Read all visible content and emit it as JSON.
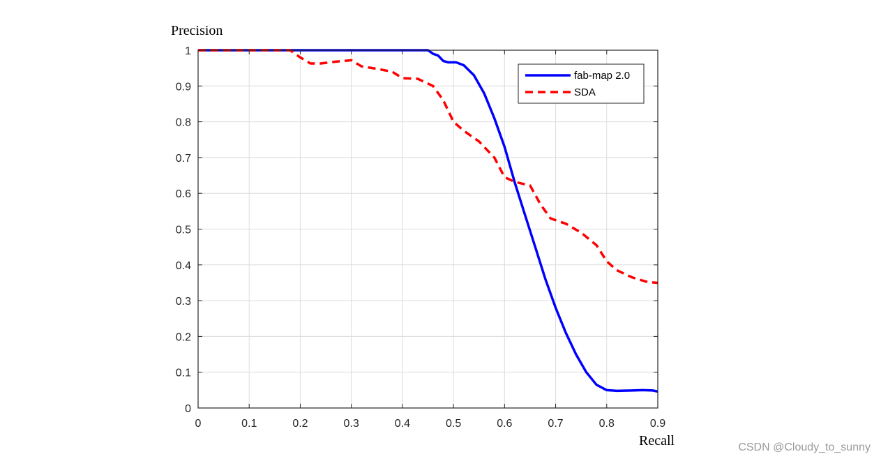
{
  "chart_data": {
    "type": "line",
    "title": "",
    "xlabel": "Recall",
    "ylabel": "Precision",
    "xlim": [
      0,
      0.9
    ],
    "ylim": [
      0,
      1
    ],
    "xticks": [
      0,
      0.1,
      0.2,
      0.3,
      0.4,
      0.5,
      0.6,
      0.7,
      0.8,
      0.9
    ],
    "xtick_labels": [
      "0",
      "0.1",
      "0.2",
      "0.3",
      "0.4",
      "0.5",
      "0.6",
      "0.7",
      "0.8",
      "0.9"
    ],
    "yticks": [
      0,
      0.1,
      0.2,
      0.3,
      0.4,
      0.5,
      0.6,
      0.7,
      0.8,
      0.9,
      1
    ],
    "ytick_labels": [
      "0",
      "0.1",
      "0.2",
      "0.3",
      "0.4",
      "0.5",
      "0.6",
      "0.7",
      "0.8",
      "0.9",
      "1"
    ],
    "grid": true,
    "legend_position": "top-right",
    "series": [
      {
        "name": "fab-map 2.0",
        "color": "#0000ff",
        "style": "solid",
        "points": [
          [
            0,
            1
          ],
          [
            0.45,
            1
          ],
          [
            0.46,
            0.99
          ],
          [
            0.47,
            0.985
          ],
          [
            0.48,
            0.97
          ],
          [
            0.49,
            0.966
          ],
          [
            0.505,
            0.966
          ],
          [
            0.52,
            0.958
          ],
          [
            0.54,
            0.93
          ],
          [
            0.56,
            0.88
          ],
          [
            0.58,
            0.81
          ],
          [
            0.6,
            0.73
          ],
          [
            0.62,
            0.63
          ],
          [
            0.64,
            0.54
          ],
          [
            0.66,
            0.45
          ],
          [
            0.68,
            0.36
          ],
          [
            0.7,
            0.28
          ],
          [
            0.72,
            0.21
          ],
          [
            0.74,
            0.15
          ],
          [
            0.76,
            0.1
          ],
          [
            0.78,
            0.065
          ],
          [
            0.8,
            0.05
          ],
          [
            0.82,
            0.048
          ],
          [
            0.85,
            0.049
          ],
          [
            0.87,
            0.05
          ],
          [
            0.89,
            0.049
          ],
          [
            0.9,
            0.046
          ]
        ]
      },
      {
        "name": "SDA",
        "color": "#ff0000",
        "style": "dashed",
        "points": [
          [
            0,
            1
          ],
          [
            0.18,
            1
          ],
          [
            0.2,
            0.98
          ],
          [
            0.22,
            0.963
          ],
          [
            0.24,
            0.963
          ],
          [
            0.27,
            0.968
          ],
          [
            0.3,
            0.972
          ],
          [
            0.32,
            0.955
          ],
          [
            0.35,
            0.948
          ],
          [
            0.38,
            0.94
          ],
          [
            0.4,
            0.922
          ],
          [
            0.43,
            0.92
          ],
          [
            0.46,
            0.9
          ],
          [
            0.48,
            0.86
          ],
          [
            0.5,
            0.8
          ],
          [
            0.52,
            0.775
          ],
          [
            0.55,
            0.745
          ],
          [
            0.58,
            0.7
          ],
          [
            0.6,
            0.645
          ],
          [
            0.62,
            0.632
          ],
          [
            0.65,
            0.622
          ],
          [
            0.67,
            0.57
          ],
          [
            0.69,
            0.53
          ],
          [
            0.72,
            0.515
          ],
          [
            0.75,
            0.49
          ],
          [
            0.78,
            0.455
          ],
          [
            0.8,
            0.41
          ],
          [
            0.82,
            0.385
          ],
          [
            0.85,
            0.365
          ],
          [
            0.88,
            0.352
          ],
          [
            0.9,
            0.35
          ]
        ]
      }
    ]
  },
  "watermark": "CSDN @Cloudy_to_sunny"
}
